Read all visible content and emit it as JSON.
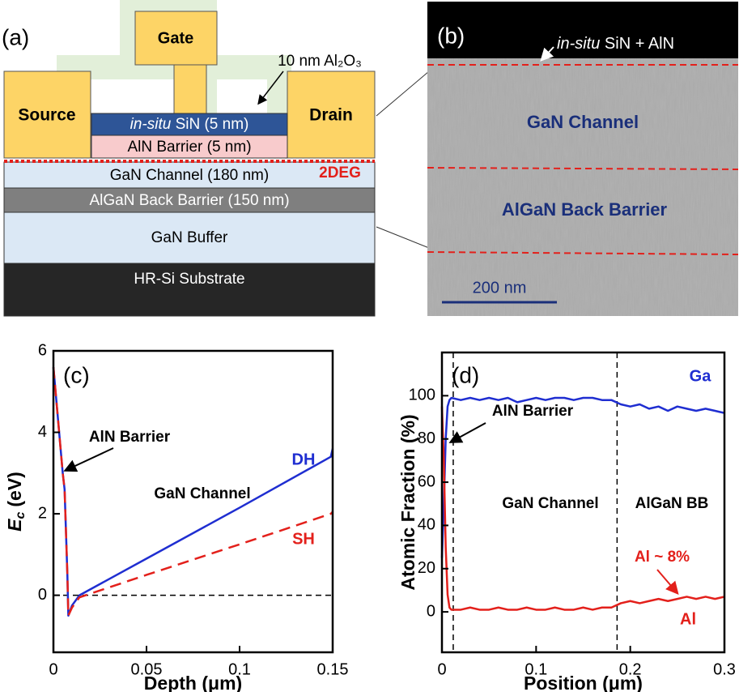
{
  "panel_a": {
    "label": "(a)",
    "gate": "Gate",
    "oxide": "10 nm Al₂O₃",
    "source": "Source",
    "drain": "Drain",
    "sin_layer": {
      "italic": "in-situ",
      "text": " SiN (5 nm)"
    },
    "aln_layer": "AlN Barrier (5 nm)",
    "channel": "GaN Channel (180 nm)",
    "twodeg": "2DEG",
    "back_barrier": "AlGaN Back Barrier (150 nm)",
    "buffer": "GaN Buffer",
    "substrate": "HR-Si Substrate"
  },
  "panel_b": {
    "label": "(b)",
    "cap": {
      "italic": "in-situ",
      "text": " SiN + AlN"
    },
    "channel": "GaN Channel",
    "back_barrier": "AlGaN Back Barrier",
    "scale_bar": "200 nm"
  },
  "chart_data": [
    {
      "type": "line",
      "panel": "(c)",
      "xlabel": "Depth (μm)",
      "ylabel": {
        "symbol": "E",
        "subscript": "c",
        "unit": "(eV)"
      },
      "xlim": [
        0,
        0.15
      ],
      "ylim": [
        -1.4,
        6
      ],
      "xticks": [
        0,
        0.05,
        0.1,
        0.15
      ],
      "yticks": [
        0,
        2,
        4,
        6
      ],
      "hlines": [
        0
      ],
      "x": [
        0,
        0.005,
        0.006,
        0.0075,
        0.008,
        0.01,
        0.014,
        0.05,
        0.1,
        0.149,
        0.15
      ],
      "series": [
        {
          "name": "DH",
          "color": "#1f2ed1",
          "dashed": false,
          "values": [
            5.6,
            3.0,
            2.6,
            0.5,
            -0.5,
            -0.25,
            0.0,
            0.9,
            2.15,
            3.4,
            3.6
          ]
        },
        {
          "name": "SH",
          "color": "#e3201b",
          "dashed": true,
          "values": [
            5.6,
            3.0,
            2.6,
            0.5,
            -0.5,
            -0.3,
            -0.05,
            0.5,
            1.25,
            2.0,
            2.05
          ]
        }
      ],
      "annotations": [
        "AlN Barrier",
        "GaN Channel"
      ]
    },
    {
      "type": "line",
      "panel": "(d)",
      "xlabel": "Position (μm)",
      "ylabel": "Atomic Fraction (%)",
      "xlim": [
        0,
        0.3
      ],
      "ylim": [
        -18.7,
        120
      ],
      "xticks": [
        0,
        0.1,
        0.2,
        0.3
      ],
      "yticks": [
        0,
        20,
        40,
        60,
        80,
        100
      ],
      "vlines": [
        0.012,
        0.186
      ],
      "x": [
        0,
        0.002,
        0.004,
        0.006,
        0.008,
        0.01,
        0.02,
        0.03,
        0.04,
        0.05,
        0.06,
        0.07,
        0.08,
        0.09,
        0.1,
        0.11,
        0.12,
        0.13,
        0.14,
        0.15,
        0.16,
        0.17,
        0.18,
        0.19,
        0.2,
        0.21,
        0.22,
        0.23,
        0.24,
        0.25,
        0.26,
        0.27,
        0.28,
        0.29,
        0.3
      ],
      "series": [
        {
          "name": "Ga",
          "color": "#1f2ed1",
          "dashed": false,
          "values": [
            25,
            50,
            80,
            95,
            98,
            99,
            98,
            99,
            98,
            99,
            98,
            99,
            97,
            98,
            99,
            98,
            99,
            99,
            98,
            99,
            99,
            98,
            98,
            96,
            95,
            96,
            94,
            95,
            93,
            95,
            94,
            93,
            94,
            93,
            92
          ]
        },
        {
          "name": "Al",
          "color": "#e3201b",
          "dashed": false,
          "values": [
            95,
            70,
            30,
            8,
            2,
            1,
            1,
            2,
            1,
            1,
            2,
            1,
            1,
            2,
            1,
            1,
            2,
            1,
            1,
            2,
            1,
            2,
            2,
            4,
            5,
            4,
            5,
            6,
            5,
            6,
            7,
            6,
            7,
            6,
            7
          ]
        }
      ],
      "annotations": [
        "AlN Barrier",
        "GaN Channel",
        "AlGaN BB",
        "Al ~ 8%"
      ]
    }
  ]
}
